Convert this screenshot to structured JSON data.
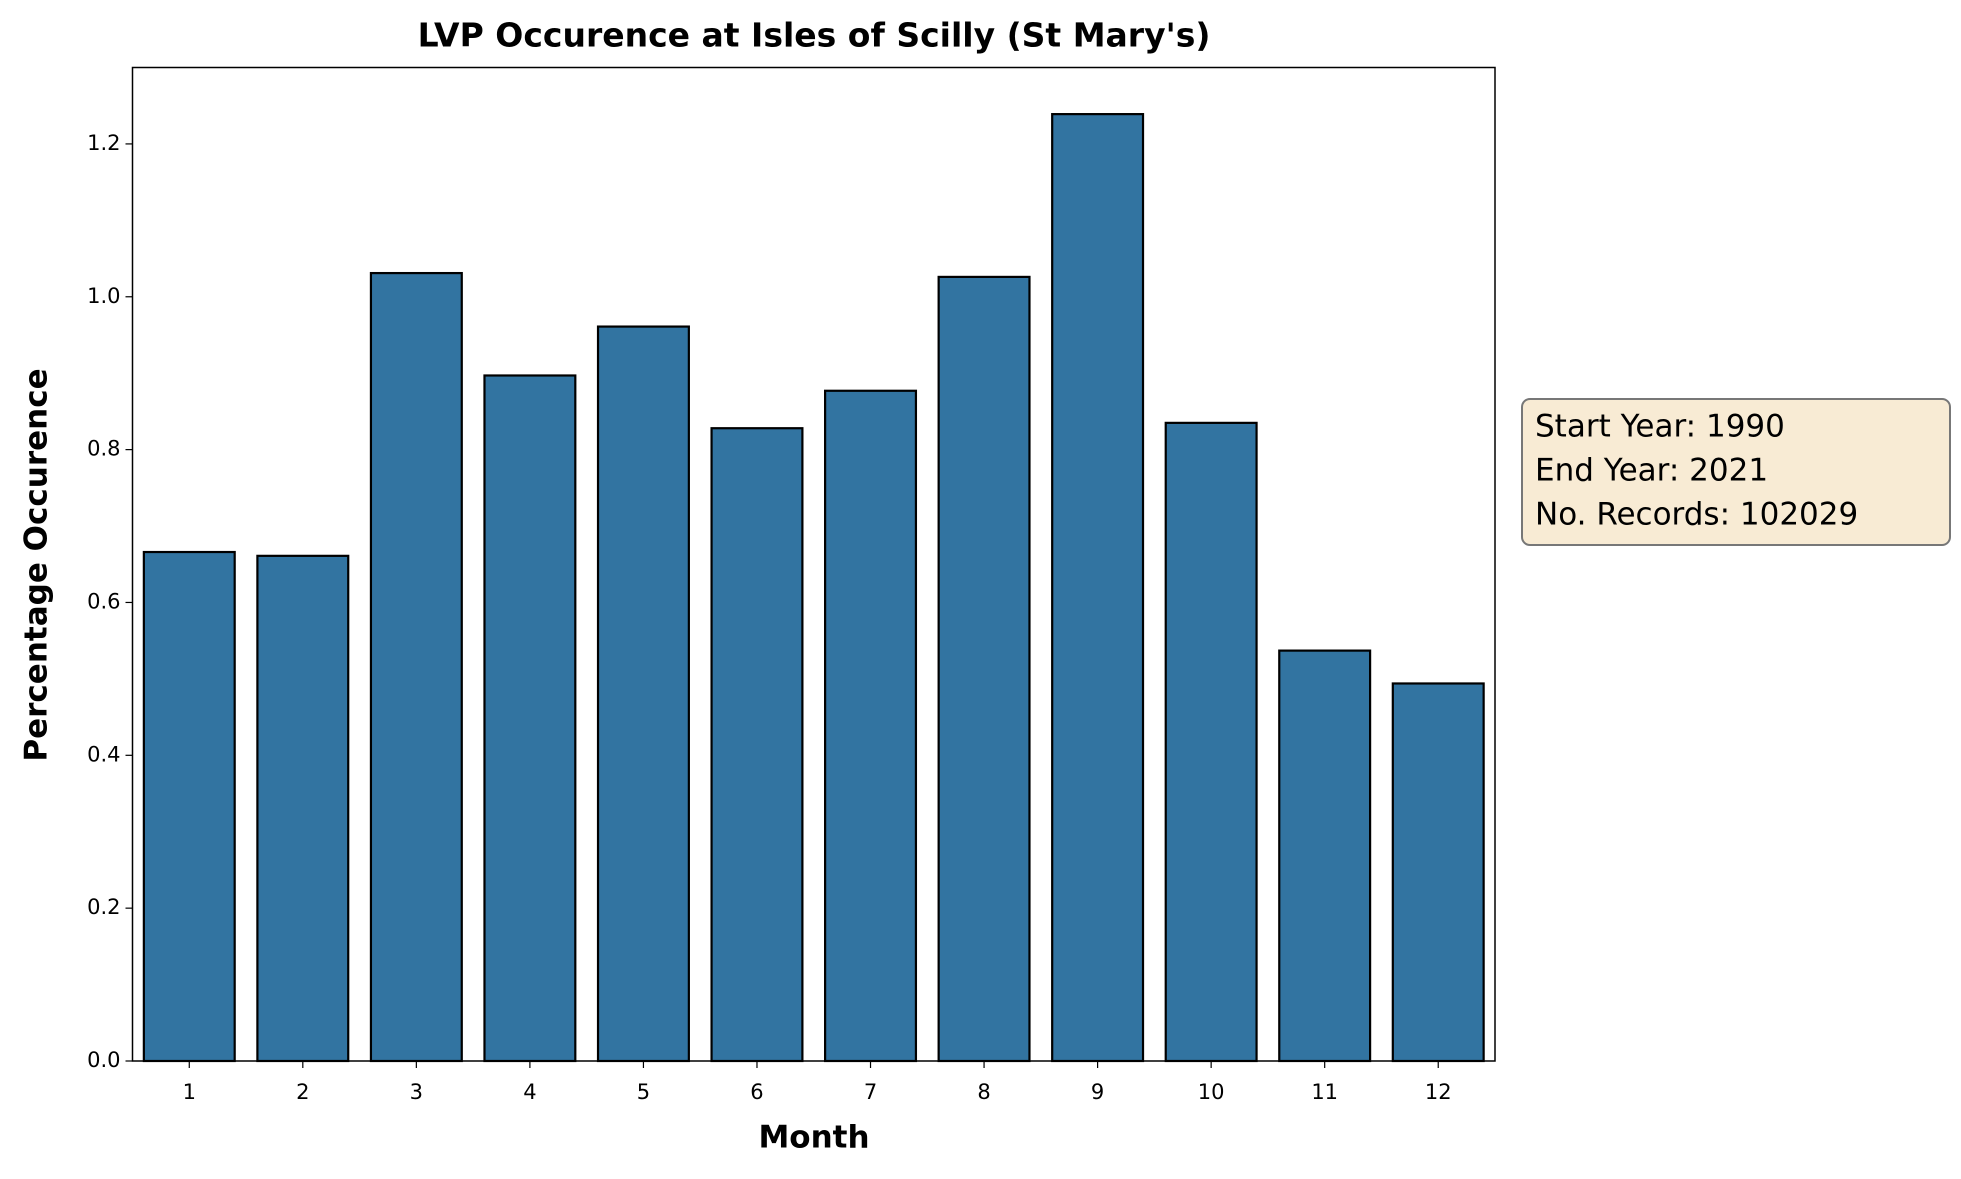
{
  "chart_data": {
    "type": "bar",
    "title": "LVP Occurence at Isles of Scilly (St Mary's)",
    "x_label": "Month",
    "y_label": "Percentage Occurence",
    "categories": [
      "1",
      "2",
      "3",
      "4",
      "5",
      "6",
      "7",
      "8",
      "9",
      "10",
      "11",
      "12"
    ],
    "values": [
      0.666,
      0.661,
      1.031,
      0.897,
      0.961,
      0.828,
      0.877,
      1.026,
      1.239,
      0.835,
      0.537,
      0.494
    ],
    "color": "#3274a1",
    "ylim": [
      0,
      1.3
    ],
    "yticks": [
      {
        "value": 0,
        "label": "0.0"
      },
      0.2,
      0.4,
      0.6,
      0.8,
      {
        "value": 1,
        "label": "1.0"
      },
      1.2
    ],
    "grid": false,
    "annotation": [
      "Start Year: 1990",
      "End Year: 2021",
      "No. Records: 102029"
    ]
  }
}
